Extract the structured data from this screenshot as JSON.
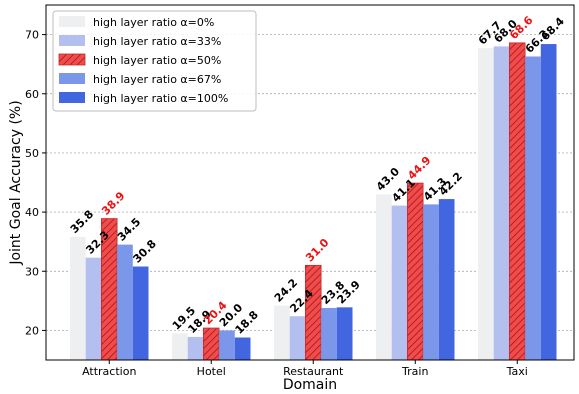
{
  "chart_data": {
    "type": "bar",
    "title": "",
    "xlabel": "Domain",
    "ylabel": "Joint Goal Accuracy (%)",
    "ylim": [
      15,
      75
    ],
    "yticks": [
      20,
      30,
      40,
      50,
      60,
      70
    ],
    "grid": "horizontal-dashed",
    "legend_position": "top-left",
    "categories": [
      "Attraction",
      "Hotel",
      "Restaurant",
      "Train",
      "Taxi"
    ],
    "series": [
      {
        "name": "high layer ratio α=0%",
        "color": "#eeeff1",
        "hatch": false,
        "label_color": "#000000",
        "values": [
          35.8,
          19.5,
          24.2,
          43.0,
          67.7
        ]
      },
      {
        "name": "high layer ratio α=33%",
        "color": "#b3bfee",
        "hatch": false,
        "label_color": "#000000",
        "values": [
          32.3,
          18.9,
          22.4,
          41.1,
          68.0
        ]
      },
      {
        "name": "high layer ratio α=50%",
        "color": "#f24b4b",
        "hatch": true,
        "label_color": "#ee1111",
        "values": [
          38.9,
          20.4,
          31.0,
          44.9,
          68.6
        ]
      },
      {
        "name": "high layer ratio α=67%",
        "color": "#7b97ea",
        "hatch": false,
        "label_color": "#000000",
        "values": [
          34.5,
          20.0,
          23.8,
          41.3,
          66.3
        ]
      },
      {
        "name": "high layer ratio α=100%",
        "color": "#4166e0",
        "hatch": false,
        "label_color": "#000000",
        "values": [
          30.8,
          18.8,
          23.9,
          42.2,
          68.4
        ]
      }
    ]
  }
}
